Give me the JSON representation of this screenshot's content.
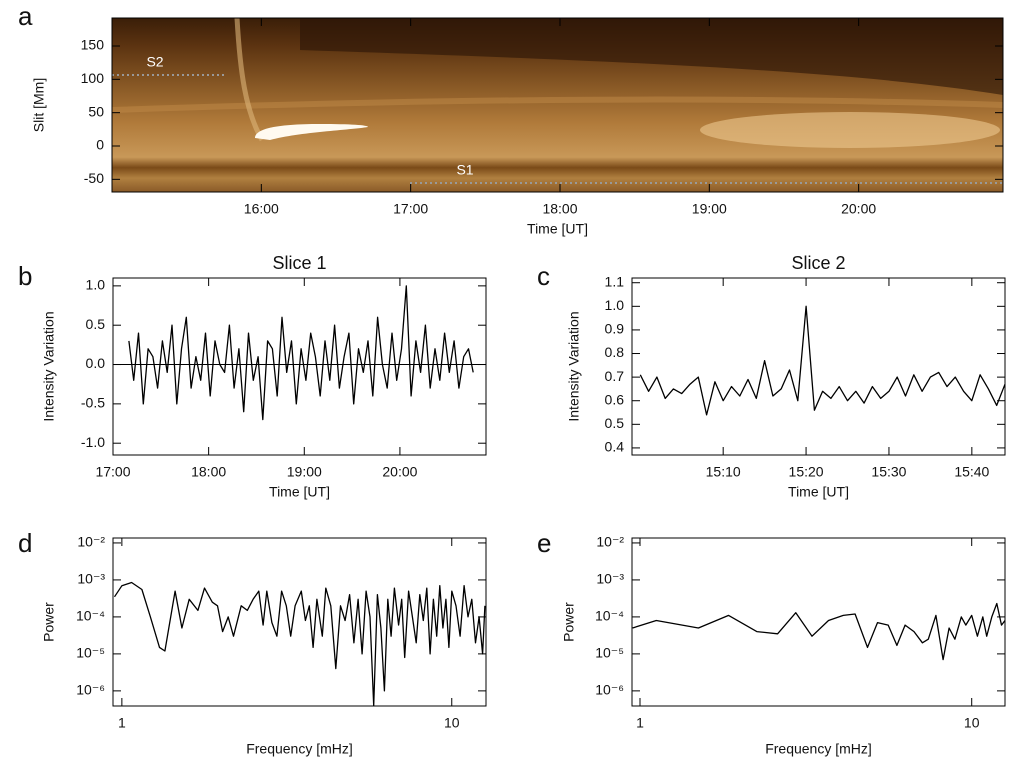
{
  "chart_data": [
    {
      "type": "image",
      "panel_label": "a",
      "xlabel": "Time [UT]",
      "ylabel": "Slit [Mm]",
      "xlim": [
        "15:00",
        "20:58"
      ],
      "xticks": [
        "16:00",
        "17:00",
        "18:00",
        "19:00",
        "20:00"
      ],
      "ylim": [
        -69,
        192
      ],
      "yticks": [
        -50,
        0,
        50,
        100,
        150
      ],
      "annotations": [
        "S2",
        "S1"
      ]
    },
    {
      "type": "line",
      "panel_label": "b",
      "title": "Slice 1",
      "xlabel": "Time [UT]",
      "ylabel": "Intensity Variation",
      "color": "#000000",
      "zero_line": true,
      "xlim": [
        "17:00",
        "20:54"
      ],
      "xticks": [
        "17:00",
        "18:00",
        "19:00",
        "20:00"
      ],
      "ylim": [
        -1.15,
        1.1
      ],
      "yticks": [
        {
          "value": -1,
          "label": "-1.0"
        },
        {
          "value": -0.5,
          "label": "-0.5"
        },
        {
          "value": 0,
          "label": "0.0"
        },
        {
          "value": 0.5,
          "label": "0.5"
        },
        {
          "value": 1,
          "label": "1.0"
        }
      ],
      "x": [
        "17:10",
        "17:13",
        "17:16",
        "17:19",
        "17:22",
        "17:25",
        "17:28",
        "17:31",
        "17:34",
        "17:37",
        "17:40",
        "17:43",
        "17:46",
        "17:49",
        "17:52",
        "17:55",
        "17:58",
        "18:01",
        "18:04",
        "18:07",
        "18:10",
        "18:13",
        "18:16",
        "18:19",
        "18:22",
        "18:25",
        "18:28",
        "18:31",
        "18:34",
        "18:37",
        "18:40",
        "18:43",
        "18:46",
        "18:49",
        "18:52",
        "18:55",
        "18:58",
        "19:01",
        "19:04",
        "19:07",
        "19:10",
        "19:13",
        "19:16",
        "19:19",
        "19:22",
        "19:25",
        "19:28",
        "19:31",
        "19:34",
        "19:37",
        "19:40",
        "19:43",
        "19:46",
        "19:49",
        "19:52",
        "19:55",
        "19:58",
        "20:01",
        "20:04",
        "20:07",
        "20:10",
        "20:13",
        "20:16",
        "20:19",
        "20:22",
        "20:25",
        "20:28",
        "20:31",
        "20:34",
        "20:37",
        "20:40",
        "20:43",
        "20:46"
      ],
      "values": [
        0.3,
        -0.2,
        0.4,
        -0.5,
        0.2,
        0.1,
        -0.3,
        0.3,
        -0.1,
        0.5,
        -0.5,
        0.2,
        0.6,
        -0.3,
        0.1,
        -0.2,
        0.4,
        -0.4,
        0.3,
        0.0,
        -0.1,
        0.5,
        -0.3,
        0.2,
        -0.6,
        0.4,
        -0.2,
        0.1,
        -0.7,
        0.3,
        0.2,
        -0.4,
        0.6,
        -0.1,
        0.3,
        -0.5,
        0.2,
        -0.2,
        0.4,
        0.1,
        -0.4,
        0.3,
        -0.2,
        0.5,
        -0.3,
        0.1,
        0.4,
        -0.5,
        0.2,
        -0.1,
        0.3,
        -0.4,
        0.6,
        0.0,
        -0.3,
        0.4,
        -0.2,
        0.2,
        1.0,
        -0.4,
        0.3,
        -0.1,
        0.5,
        -0.3,
        0.2,
        -0.2,
        0.4,
        -0.1,
        0.3,
        -0.3,
        0.1,
        0.2,
        -0.1
      ]
    },
    {
      "type": "line",
      "panel_label": "c",
      "title": "Slice 2",
      "xlabel": "Time [UT]",
      "ylabel": "Intensity Variation",
      "color": "#000000",
      "xlim": [
        "14:59",
        "15:44"
      ],
      "xticks": [
        "15:10",
        "15:20",
        "15:30",
        "15:40"
      ],
      "ylim": [
        0.37,
        1.12
      ],
      "yticks": [
        0.4,
        0.5,
        0.6,
        0.7,
        0.8,
        0.9,
        {
          "value": 1,
          "label": "1.0"
        },
        1.1
      ],
      "x": [
        "15:00",
        "15:01",
        "15:02",
        "15:03",
        "15:04",
        "15:05",
        "15:06",
        "15:07",
        "15:08",
        "15:09",
        "15:10",
        "15:11",
        "15:12",
        "15:13",
        "15:14",
        "15:15",
        "15:16",
        "15:17",
        "15:18",
        "15:19",
        "15:20",
        "15:21",
        "15:22",
        "15:23",
        "15:24",
        "15:25",
        "15:26",
        "15:27",
        "15:28",
        "15:29",
        "15:30",
        "15:31",
        "15:32",
        "15:33",
        "15:34",
        "15:35",
        "15:36",
        "15:37",
        "15:38",
        "15:39",
        "15:40",
        "15:41",
        "15:42",
        "15:43",
        "15:44"
      ],
      "values": [
        0.71,
        0.64,
        0.7,
        0.61,
        0.65,
        0.63,
        0.67,
        0.7,
        0.54,
        0.68,
        0.6,
        0.66,
        0.62,
        0.69,
        0.61,
        0.77,
        0.62,
        0.65,
        0.73,
        0.6,
        1.0,
        0.56,
        0.64,
        0.61,
        0.66,
        0.6,
        0.64,
        0.59,
        0.66,
        0.61,
        0.64,
        0.7,
        0.62,
        0.71,
        0.64,
        0.7,
        0.72,
        0.66,
        0.7,
        0.64,
        0.6,
        0.71,
        0.65,
        0.58,
        0.67
      ]
    },
    {
      "type": "line",
      "panel_label": "d",
      "xlabel": "Frequency [mHz]",
      "ylabel": "Power",
      "color": "#000000",
      "xlog": true,
      "ylog": true,
      "xlim": [
        0.94,
        12.7
      ],
      "xticks": [
        1,
        10
      ],
      "ylim": [
        3.9e-07,
        0.0136
      ],
      "yticks": [
        {
          "value": 1e-06,
          "label": "10⁻⁶"
        },
        {
          "value": 1e-05,
          "label": "10⁻⁵"
        },
        {
          "value": 0.0001,
          "label": "10⁻⁴"
        },
        {
          "value": 0.001,
          "label": "10⁻³"
        },
        {
          "value": 0.01,
          "label": "10⁻²"
        }
      ],
      "x": [
        0.95,
        1.0,
        1.07,
        1.15,
        1.22,
        1.3,
        1.35,
        1.45,
        1.52,
        1.6,
        1.7,
        1.78,
        1.88,
        1.95,
        2.02,
        2.1,
        2.18,
        2.3,
        2.4,
        2.5,
        2.6,
        2.68,
        2.75,
        2.85,
        2.95,
        3.05,
        3.15,
        3.25,
        3.35,
        3.5,
        3.6,
        3.7,
        3.8,
        3.9,
        4.05,
        4.15,
        4.3,
        4.45,
        4.6,
        4.75,
        4.9,
        5.05,
        5.2,
        5.35,
        5.5,
        5.65,
        5.8,
        5.95,
        6.1,
        6.25,
        6.4,
        6.55,
        6.7,
        6.9,
        7.05,
        7.2,
        7.4,
        7.6,
        7.8,
        8.0,
        8.2,
        8.4,
        8.6,
        8.8,
        9.0,
        9.2,
        9.4,
        9.6,
        9.8,
        10.0,
        10.3,
        10.6,
        10.9,
        11.2,
        11.5,
        11.8,
        12.1,
        12.4,
        12.6
      ],
      "values": [
        0.00035,
        0.0007,
        0.00085,
        0.00055,
        0.0001,
        1.5e-05,
        1.2e-05,
        0.0005,
        5e-05,
        0.0003,
        0.00015,
        0.0006,
        0.00025,
        0.0002,
        4e-05,
        0.0001,
        3e-05,
        0.0002,
        0.00015,
        0.0003,
        0.0005,
        6e-05,
        0.0005,
        7e-05,
        3e-05,
        0.0005,
        0.0002,
        3e-05,
        0.0002,
        0.0005,
        8e-05,
        0.0002,
        1.5e-05,
        0.0003,
        3e-05,
        0.0006,
        0.0002,
        4e-06,
        0.0002,
        8e-05,
        0.0004,
        2e-05,
        0.0003,
        1e-05,
        0.0005,
        0.0001,
        4e-07,
        0.0004,
        5e-05,
        1e-06,
        0.0003,
        3e-05,
        0.0006,
        6e-05,
        0.0003,
        8e-06,
        0.0005,
        0.0001,
        2e-05,
        0.0004,
        8e-05,
        0.0006,
        1e-05,
        0.0003,
        3e-05,
        0.0007,
        5e-05,
        0.0003,
        1.5e-05,
        0.0005,
        0.0002,
        3e-05,
        0.0007,
        0.0001,
        0.0003,
        2e-05,
        0.0001,
        1e-05,
        0.0002
      ]
    },
    {
      "type": "line",
      "panel_label": "e",
      "xlabel": "Frequency [mHz]",
      "ylabel": "Power",
      "color": "#000000",
      "xlog": true,
      "ylog": true,
      "xlim": [
        0.946,
        12.6
      ],
      "xticks": [
        1,
        10
      ],
      "ylim": [
        3.9e-07,
        0.0136
      ],
      "yticks": [
        {
          "value": 1e-06,
          "label": "10⁻⁶"
        },
        {
          "value": 1e-05,
          "label": "10⁻⁵"
        },
        {
          "value": 0.0001,
          "label": "10⁻⁴"
        },
        {
          "value": 0.001,
          "label": "10⁻³"
        },
        {
          "value": 0.01,
          "label": "10⁻²"
        }
      ],
      "x": [
        0.95,
        1.12,
        1.5,
        1.85,
        2.25,
        2.6,
        2.95,
        3.3,
        3.7,
        4.1,
        4.45,
        4.85,
        5.2,
        5.6,
        5.95,
        6.3,
        6.7,
        7.1,
        7.4,
        7.8,
        8.2,
        8.55,
        8.9,
        9.3,
        9.6,
        10.0,
        10.4,
        10.8,
        11.1,
        11.5,
        11.9,
        12.3,
        12.6
      ],
      "values": [
        5e-05,
        8e-05,
        5e-05,
        0.00011,
        4e-05,
        3.5e-05,
        0.00013,
        3e-05,
        8e-05,
        0.00011,
        0.00012,
        1.5e-05,
        7e-05,
        6e-05,
        1.7e-05,
        6e-05,
        4e-05,
        2e-05,
        2.5e-05,
        0.00011,
        7e-06,
        5e-05,
        2.5e-05,
        0.0001,
        6e-05,
        0.00011,
        3e-05,
        0.0001,
        3e-05,
        0.0001,
        0.00023,
        6e-05,
        8e-05
      ]
    }
  ]
}
